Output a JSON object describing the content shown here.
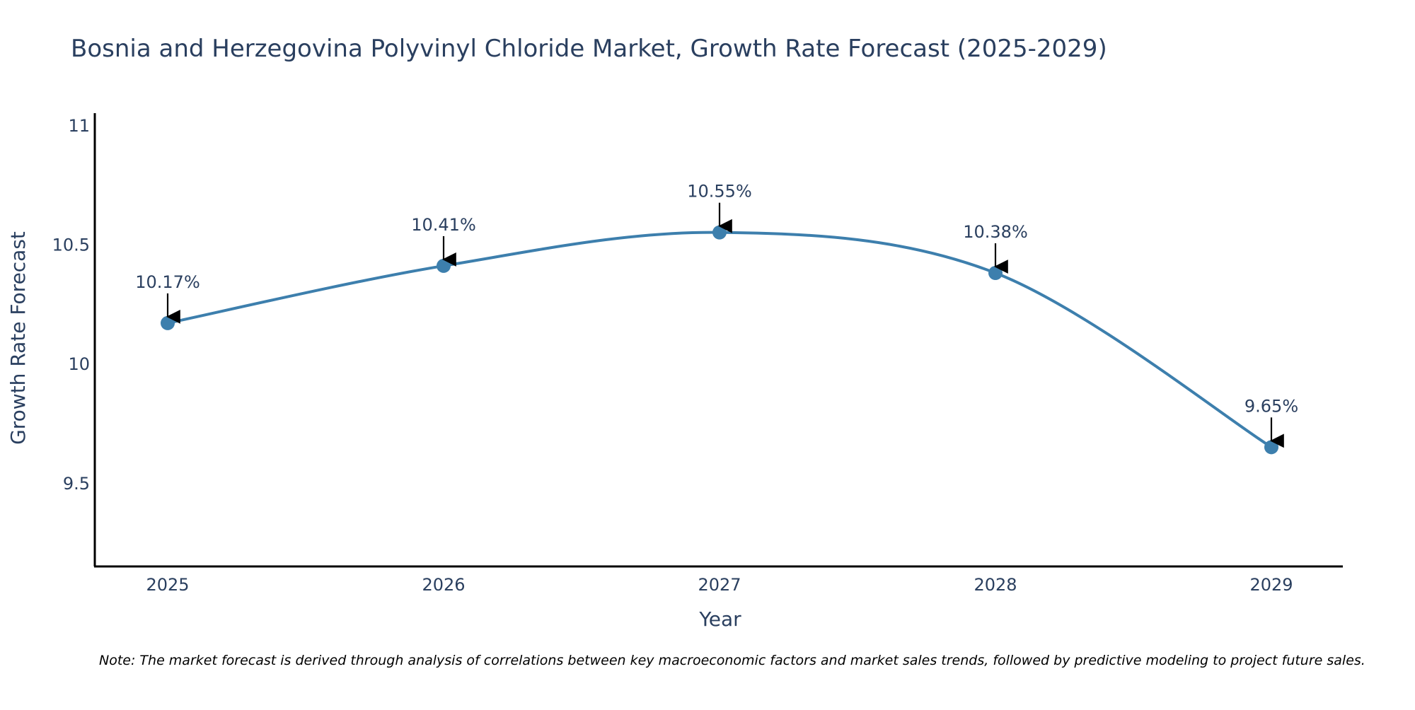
{
  "chart_data": {
    "type": "line",
    "title": "Bosnia and Herzegovina Polyvinyl Chloride Market, Growth Rate Forecast (2025-2029)",
    "xlabel": "Year",
    "ylabel": "Growth Rate Forecast",
    "categories": [
      "2025",
      "2026",
      "2027",
      "2028",
      "2029"
    ],
    "values": [
      10.17,
      10.41,
      10.55,
      10.38,
      9.65
    ],
    "data_labels": [
      "10.17%",
      "10.41%",
      "10.55%",
      "10.38%",
      "9.65%"
    ],
    "ylim": [
      9.15,
      11.05
    ],
    "y_ticks": [
      9.5,
      10,
      10.5,
      11
    ],
    "y_tick_labels": [
      "9.5",
      "10",
      "10.5",
      "11"
    ],
    "grid": false,
    "line_shape": "spline",
    "line_color": "#3d7fad",
    "marker_color": "#3d7fad",
    "note": "Note: The market forecast is derived through analysis of correlations between key macroeconomic factors and market sales trends, followed by predictive modeling to project future sales."
  }
}
